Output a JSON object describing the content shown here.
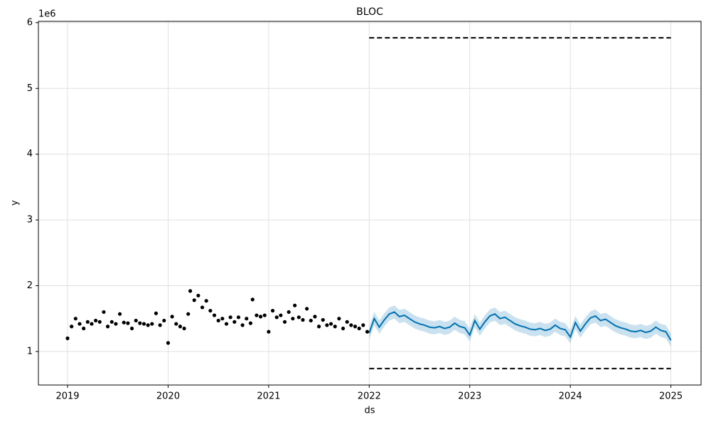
{
  "chart_data": {
    "type": "forecast",
    "title": "BLOC",
    "x_label": "ds",
    "y_label": "y",
    "y_offset_label": "1e6",
    "xlim": [
      2018.71,
      2025.3
    ],
    "ylim": [
      0.49,
      6.02
    ],
    "xticks": [
      2019,
      2020,
      2021,
      2022,
      2023,
      2024,
      2025
    ],
    "yticks": [
      1,
      2,
      3,
      4,
      5,
      6
    ],
    "grid": true,
    "observed": {
      "color": "#000000",
      "x": [
        2019.0,
        2019.04,
        2019.08,
        2019.12,
        2019.16,
        2019.2,
        2019.24,
        2019.28,
        2019.32,
        2019.36,
        2019.4,
        2019.44,
        2019.48,
        2019.52,
        2019.56,
        2019.6,
        2019.64,
        2019.68,
        2019.72,
        2019.76,
        2019.8,
        2019.84,
        2019.88,
        2019.92,
        2019.96,
        2020.0,
        2020.04,
        2020.08,
        2020.12,
        2020.16,
        2020.2,
        2020.22,
        2020.26,
        2020.3,
        2020.34,
        2020.38,
        2020.42,
        2020.46,
        2020.5,
        2020.54,
        2020.58,
        2020.62,
        2020.66,
        2020.7,
        2020.74,
        2020.78,
        2020.82,
        2020.84,
        2020.88,
        2020.92,
        2020.96,
        2021.0,
        2021.04,
        2021.08,
        2021.12,
        2021.16,
        2021.2,
        2021.24,
        2021.26,
        2021.3,
        2021.34,
        2021.38,
        2021.42,
        2021.46,
        2021.5,
        2021.54,
        2021.58,
        2021.62,
        2021.66,
        2021.7,
        2021.74,
        2021.78,
        2021.82,
        2021.86,
        2021.9,
        2021.94,
        2021.98
      ],
      "values": [
        1.2,
        1.38,
        1.5,
        1.42,
        1.35,
        1.45,
        1.42,
        1.47,
        1.45,
        1.6,
        1.38,
        1.45,
        1.42,
        1.57,
        1.44,
        1.43,
        1.35,
        1.47,
        1.43,
        1.42,
        1.4,
        1.42,
        1.58,
        1.4,
        1.47,
        1.13,
        1.53,
        1.42,
        1.38,
        1.35,
        1.57,
        1.92,
        1.78,
        1.85,
        1.67,
        1.77,
        1.62,
        1.55,
        1.47,
        1.5,
        1.42,
        1.52,
        1.45,
        1.52,
        1.4,
        1.5,
        1.43,
        1.79,
        1.55,
        1.53,
        1.55,
        1.3,
        1.62,
        1.52,
        1.55,
        1.45,
        1.6,
        1.5,
        1.7,
        1.52,
        1.48,
        1.65,
        1.47,
        1.53,
        1.38,
        1.48,
        1.4,
        1.42,
        1.38,
        1.5,
        1.35,
        1.45,
        1.4,
        1.38,
        1.35,
        1.4,
        1.3
      ]
    },
    "forecast": {
      "color": "#0072b2",
      "band_color": "#a6cde6",
      "x": [
        2022.0,
        2022.05,
        2022.1,
        2022.15,
        2022.2,
        2022.25,
        2022.3,
        2022.35,
        2022.4,
        2022.45,
        2022.5,
        2022.55,
        2022.6,
        2022.65,
        2022.7,
        2022.75,
        2022.8,
        2022.85,
        2022.9,
        2022.95,
        2023.0,
        2023.05,
        2023.1,
        2023.15,
        2023.2,
        2023.25,
        2023.3,
        2023.35,
        2023.4,
        2023.45,
        2023.5,
        2023.55,
        2023.6,
        2023.65,
        2023.7,
        2023.75,
        2023.8,
        2023.85,
        2023.9,
        2023.95,
        2024.0,
        2024.05,
        2024.1,
        2024.15,
        2024.2,
        2024.25,
        2024.3,
        2024.35,
        2024.4,
        2024.45,
        2024.5,
        2024.55,
        2024.6,
        2024.65,
        2024.7,
        2024.75,
        2024.8,
        2024.85,
        2024.9,
        2024.95,
        2025.0
      ],
      "values": [
        1.28,
        1.5,
        1.37,
        1.48,
        1.57,
        1.6,
        1.53,
        1.55,
        1.5,
        1.45,
        1.42,
        1.4,
        1.37,
        1.36,
        1.38,
        1.35,
        1.37,
        1.43,
        1.38,
        1.36,
        1.25,
        1.47,
        1.34,
        1.45,
        1.54,
        1.57,
        1.5,
        1.52,
        1.47,
        1.42,
        1.39,
        1.37,
        1.34,
        1.33,
        1.35,
        1.32,
        1.34,
        1.4,
        1.35,
        1.33,
        1.22,
        1.44,
        1.31,
        1.42,
        1.51,
        1.54,
        1.47,
        1.49,
        1.44,
        1.39,
        1.36,
        1.34,
        1.31,
        1.3,
        1.32,
        1.29,
        1.31,
        1.37,
        1.32,
        1.3,
        1.17
      ],
      "upper": [
        1.38,
        1.6,
        1.47,
        1.58,
        1.67,
        1.7,
        1.63,
        1.65,
        1.6,
        1.55,
        1.52,
        1.5,
        1.47,
        1.46,
        1.48,
        1.45,
        1.47,
        1.53,
        1.48,
        1.46,
        1.35,
        1.57,
        1.44,
        1.55,
        1.64,
        1.67,
        1.6,
        1.62,
        1.57,
        1.52,
        1.49,
        1.47,
        1.44,
        1.43,
        1.45,
        1.42,
        1.44,
        1.5,
        1.45,
        1.43,
        1.32,
        1.54,
        1.41,
        1.52,
        1.61,
        1.64,
        1.57,
        1.59,
        1.54,
        1.49,
        1.46,
        1.44,
        1.41,
        1.4,
        1.42,
        1.39,
        1.41,
        1.47,
        1.42,
        1.4,
        1.27
      ],
      "lower": [
        1.18,
        1.4,
        1.27,
        1.38,
        1.47,
        1.5,
        1.43,
        1.45,
        1.4,
        1.35,
        1.32,
        1.3,
        1.27,
        1.26,
        1.28,
        1.25,
        1.27,
        1.33,
        1.28,
        1.26,
        1.15,
        1.37,
        1.24,
        1.35,
        1.44,
        1.47,
        1.4,
        1.42,
        1.37,
        1.32,
        1.29,
        1.27,
        1.24,
        1.23,
        1.25,
        1.22,
        1.24,
        1.3,
        1.25,
        1.23,
        1.12,
        1.34,
        1.21,
        1.32,
        1.41,
        1.44,
        1.37,
        1.39,
        1.34,
        1.29,
        1.26,
        1.24,
        1.21,
        1.2,
        1.22,
        1.19,
        1.21,
        1.27,
        1.22,
        1.2,
        1.07
      ]
    },
    "cap": {
      "color": "#000000",
      "x": [
        2022.0,
        2025.0
      ],
      "values": [
        5.77,
        5.77
      ]
    },
    "floor": {
      "color": "#000000",
      "x": [
        2022.0,
        2025.0
      ],
      "values": [
        0.74,
        0.74
      ]
    }
  }
}
